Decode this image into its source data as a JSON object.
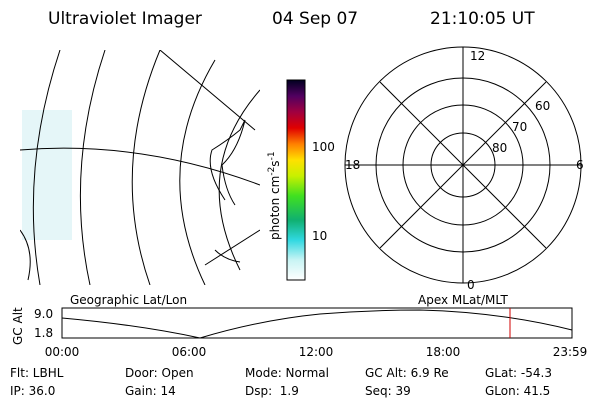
{
  "header": {
    "title": "Ultraviolet Imager",
    "date": "04 Sep 07",
    "time": "21:10:05 UT"
  },
  "colorbar": {
    "label_parts": [
      "photon cm",
      "-2",
      "s",
      "-1"
    ],
    "ticks": [
      "100",
      "10"
    ]
  },
  "polar": {
    "mlt_labels": [
      "12",
      "18",
      "6",
      "0"
    ],
    "lat_labels": [
      "60",
      "70",
      "80"
    ]
  },
  "timeline": {
    "left_title": "Geographic Lat/Lon",
    "right_title": "Apex MLat/MLT",
    "axis_label": "GC Alt",
    "y_labels": [
      "9.0",
      "1.8"
    ],
    "x_labels": [
      "00:00",
      "06:00",
      "12:00",
      "18:00",
      "23:59"
    ]
  },
  "info": [
    [
      "Flt: LBHL",
      "IP: 36.0"
    ],
    [
      "Door: Open",
      "Gain: 14"
    ],
    [
      "Mode: Normal",
      "Dsp:  1.9"
    ],
    [
      "GC Alt: 6.9 Re",
      "Seq: 39"
    ],
    [
      "GLat: -54.3",
      "GLon: 41.5"
    ]
  ]
}
